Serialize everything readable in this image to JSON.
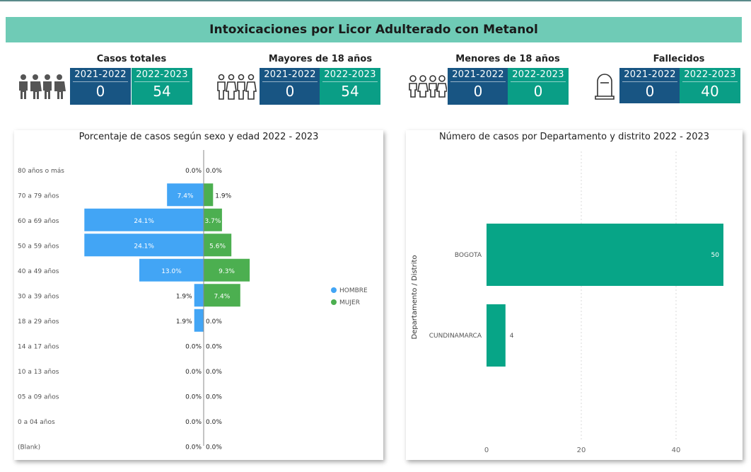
{
  "header": {
    "title": "Intoxicaciones por Licor Adulterado con Metanol"
  },
  "kpis": [
    {
      "title": "Casos totales",
      "icon": "group-people-icon",
      "y1_label": "2021-2022",
      "y1_value": "0",
      "y2_label": "2022-2023",
      "y2_value": "54"
    },
    {
      "title": "Mayores de 18 años",
      "icon": "adults-icon",
      "y1_label": "2021-2022",
      "y1_value": "0",
      "y2_label": "2022-2023",
      "y2_value": "54"
    },
    {
      "title": "Menores de 18 años",
      "icon": "children-icon",
      "y1_label": "2021-2022",
      "y1_value": "0",
      "y2_label": "2022-2023",
      "y2_value": "0"
    },
    {
      "title": "Fallecidos",
      "icon": "tombstone-icon",
      "y1_label": "2021-2022",
      "y1_value": "0",
      "y2_label": "2022-2023",
      "y2_value": "40"
    }
  ],
  "colors": {
    "banner": "#6fcbb6",
    "dark_blue": "#185583",
    "teal": "#0a9e86",
    "hombre": "#42a5f5",
    "mujer": "#4caf50",
    "bar2": "#07a587"
  },
  "chart_data": [
    {
      "type": "bar",
      "orientation": "horizontal-butterfly",
      "title": "Porcentaje de casos según sexo y edad 2022 - 2023",
      "categories": [
        "80 años o más",
        "70 a 79 años",
        "60 a 69 años",
        "50 a 59 años",
        "40 a 49 años",
        "30 a 39 años",
        "18 a 29 años",
        "14 a 17 años",
        "10 a 13 años",
        "05 a 09 años",
        "0 a 04 años",
        "(Blank)"
      ],
      "series": [
        {
          "name": "HOMBRE",
          "values": [
            0.0,
            7.4,
            24.1,
            24.1,
            13.0,
            1.9,
            1.9,
            0.0,
            0.0,
            0.0,
            0.0,
            0.0
          ],
          "labels": [
            "0.0%",
            "7.4%",
            "24.1%",
            "24.1%",
            "13.0%",
            "1.9%",
            "1.9%",
            "0.0%",
            "0.0%",
            "0.0%",
            "0.0%",
            "0.0%"
          ]
        },
        {
          "name": "MUJER",
          "values": [
            0.0,
            1.9,
            3.7,
            5.6,
            9.3,
            7.4,
            0.0,
            0.0,
            0.0,
            0.0,
            0.0,
            0.0
          ],
          "labels": [
            "0.0%",
            "1.9%",
            "3.7%",
            "5.6%",
            "9.3%",
            "7.4%",
            "0.0%",
            "0.0%",
            "0.0%",
            "0.0%",
            "0.0%",
            "0.0%"
          ]
        }
      ],
      "legend": [
        "HOMBRE",
        "MUJER"
      ],
      "xmax": 25
    },
    {
      "type": "bar",
      "orientation": "horizontal",
      "title": "Número de casos por Departamento y distrito 2022 - 2023",
      "categories": [
        "BOGOTA",
        "CUNDINAMARCA"
      ],
      "values": [
        50,
        4
      ],
      "value_labels": [
        "50",
        "4"
      ],
      "ylabel": "Departamento / Distrito",
      "xticks": [
        0,
        20,
        40
      ],
      "xtick_labels": [
        "0",
        "20",
        "40"
      ],
      "xlim": [
        0,
        50
      ]
    }
  ]
}
